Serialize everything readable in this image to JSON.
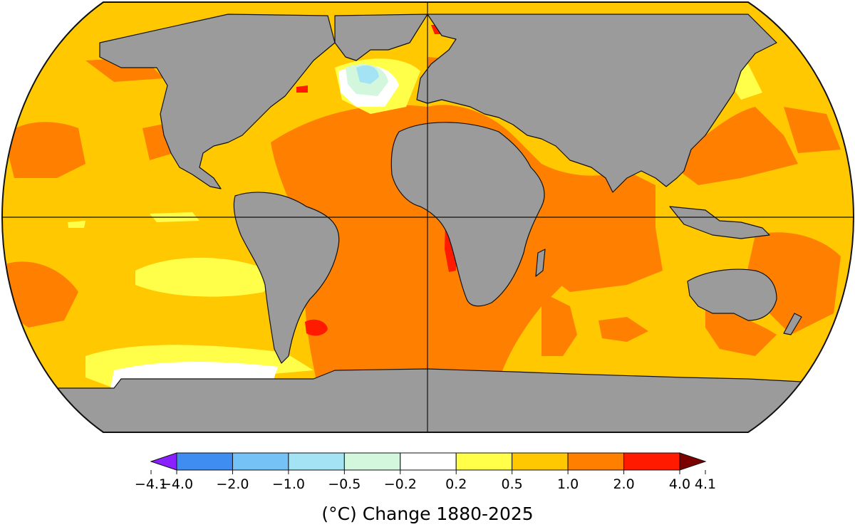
{
  "legend": {
    "title": "(°C) Change 1880-2025",
    "ticks": [
      "−4.1",
      "−4.0",
      "−2.0",
      "−1.0",
      "−0.5",
      "−0.2",
      "0.2",
      "0.5",
      "1.0",
      "2.0",
      "4.0",
      "4.1"
    ],
    "bins": [
      {
        "range": "< -4.0",
        "color": "#8a20ff"
      },
      {
        "range": "-4.0 to -2.0",
        "color": "#3f8df0"
      },
      {
        "range": "-2.0 to -1.0",
        "color": "#74c2f6"
      },
      {
        "range": "-1.0 to -0.5",
        "color": "#a3e3f4"
      },
      {
        "range": "-0.5 to -0.2",
        "color": "#d2f7dc"
      },
      {
        "range": "-0.2 to 0.2",
        "color": "#ffffff"
      },
      {
        "range": "0.2 to 0.5",
        "color": "#ffff4a"
      },
      {
        "range": "0.5 to 1.0",
        "color": "#ffc800"
      },
      {
        "range": "1.0 to 2.0",
        "color": "#ff8000"
      },
      {
        "range": "2.0 to 4.0",
        "color": "#ff1a00"
      },
      {
        "range": "> 4.0",
        "color": "#7d0000"
      }
    ]
  },
  "map": {
    "projection": "robinson",
    "land_color": "#9b9b9b",
    "grid_lines": [
      "equator",
      "prime-meridian"
    ]
  }
}
